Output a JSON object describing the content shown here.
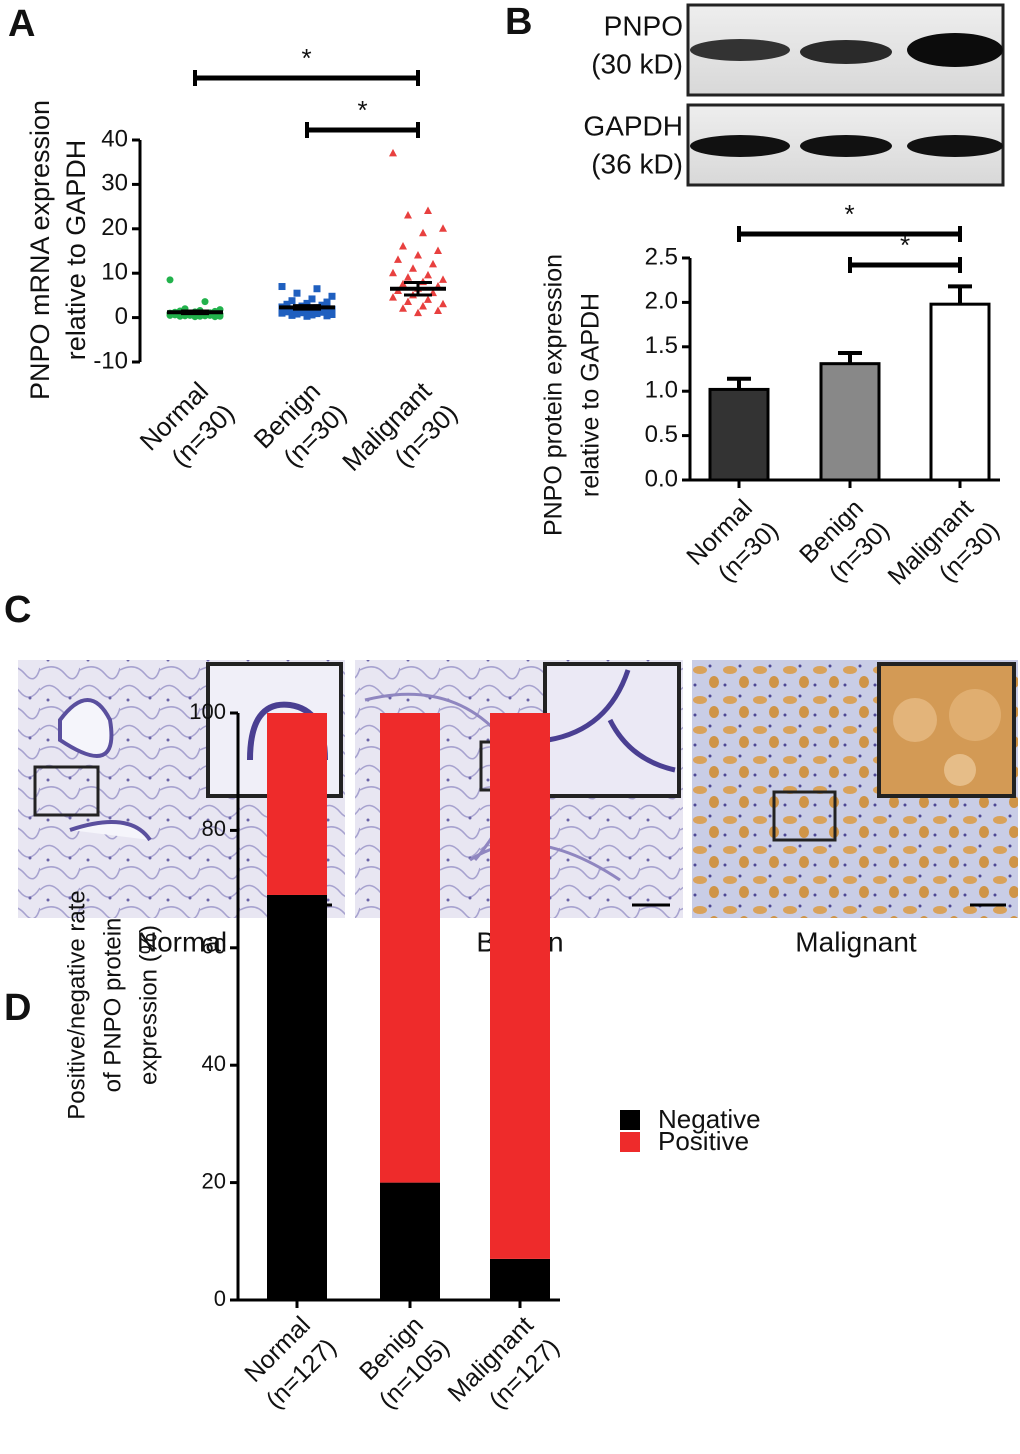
{
  "panel_labels": [
    "A",
    "B",
    "C",
    "D"
  ],
  "blots": [
    {
      "lines": [
        "PNPO",
        "(30 kD)"
      ]
    },
    {
      "lines": [
        "GAPDH",
        "(36 kD)"
      ]
    }
  ],
  "histology": {
    "captions": [
      "Normal",
      "Benign",
      "Malignant"
    ]
  },
  "chart_data": [
    {
      "type": "dotplot",
      "ylabel": [
        "PNPO mRNA expression",
        "relative to GAPDH"
      ],
      "categories": [
        [
          "Normal",
          "(n=30)"
        ],
        [
          "Benign",
          "(n=30)"
        ],
        [
          "Malignant",
          "(n=30)"
        ]
      ],
      "groups": [
        {
          "color": "#22b24c",
          "marker": "circle",
          "mean": 1.2,
          "sem": 0.3,
          "values": [
            8.5,
            3.6,
            2.0,
            1.8,
            1.6,
            1.5,
            1.4,
            1.3,
            1.2,
            1.1,
            1.0,
            1.0,
            0.9,
            0.9,
            0.8,
            0.8,
            0.7,
            0.7,
            0.6,
            0.6,
            0.5,
            0.5,
            0.5,
            0.4,
            0.4,
            0.3,
            0.3,
            0.3,
            0.2,
            0.2
          ]
        },
        {
          "color": "#1f5fbf",
          "marker": "square",
          "mean": 2.3,
          "sem": 0.4,
          "values": [
            7.0,
            6.5,
            5.5,
            4.8,
            4.2,
            3.8,
            3.5,
            3.2,
            3.0,
            2.8,
            2.6,
            2.4,
            2.2,
            2.0,
            1.9,
            1.8,
            1.6,
            1.5,
            1.4,
            1.3,
            1.2,
            1.1,
            1.0,
            0.9,
            0.8,
            0.7,
            0.6,
            0.5,
            0.4,
            0.3
          ]
        },
        {
          "color": "#e8403f",
          "marker": "triangle",
          "mean": 6.5,
          "sem": 1.4,
          "values": [
            37,
            24,
            23,
            20,
            19,
            16,
            15,
            14,
            13,
            12,
            11,
            10,
            9.5,
            9,
            8.5,
            8,
            7.5,
            7,
            6.5,
            6,
            5.5,
            5,
            4.5,
            4,
            3.5,
            3,
            2.5,
            2,
            1.5,
            1
          ]
        }
      ],
      "ylim": [
        -10,
        40
      ],
      "yticks": [
        -10,
        0,
        10,
        20,
        30,
        40
      ],
      "significance": [
        {
          "pair": [
            0,
            2
          ],
          "label": "*"
        },
        {
          "pair": [
            1,
            2
          ],
          "label": "*"
        }
      ]
    },
    {
      "type": "bar",
      "ylabel": [
        "PNPO protein expression",
        "relative to GAPDH"
      ],
      "categories": [
        [
          "Normal",
          "(n=30)"
        ],
        [
          "Benign",
          "(n=30)"
        ],
        [
          "Malignant",
          "(n=30)"
        ]
      ],
      "values": [
        1.02,
        1.31,
        1.98
      ],
      "errors": [
        0.12,
        0.12,
        0.2
      ],
      "colors": [
        "#333333",
        "#888888",
        "#ffffff"
      ],
      "ylim": [
        0,
        2.5
      ],
      "yticks": [
        {
          "value": 0,
          "label": "0.0"
        },
        0.5,
        {
          "value": 1,
          "label": "1.0"
        },
        1.5,
        {
          "value": 2,
          "label": "2.0"
        },
        2.5
      ],
      "significance": [
        {
          "pair": [
            0,
            2
          ],
          "label": "*"
        },
        {
          "pair": [
            1,
            2
          ],
          "label": "*"
        }
      ]
    },
    {
      "type": "stackedbar",
      "ylabel": [
        "Positive/negative rate",
        "of PNPO protein",
        "expression (%)"
      ],
      "categories": [
        [
          "Normal",
          "(n=127)"
        ],
        [
          "Benign",
          "(n=105)"
        ],
        [
          "Malignant",
          "(n=127)"
        ]
      ],
      "series": [
        {
          "name": "Negative",
          "color": "#000000",
          "values": [
            69,
            20,
            7
          ]
        },
        {
          "name": "Positive",
          "color": "#ee2b2b",
          "values": [
            31,
            80,
            93
          ]
        }
      ],
      "ylim": [
        0,
        100
      ],
      "yticks": [
        0,
        20,
        40,
        60,
        80,
        100
      ]
    }
  ]
}
